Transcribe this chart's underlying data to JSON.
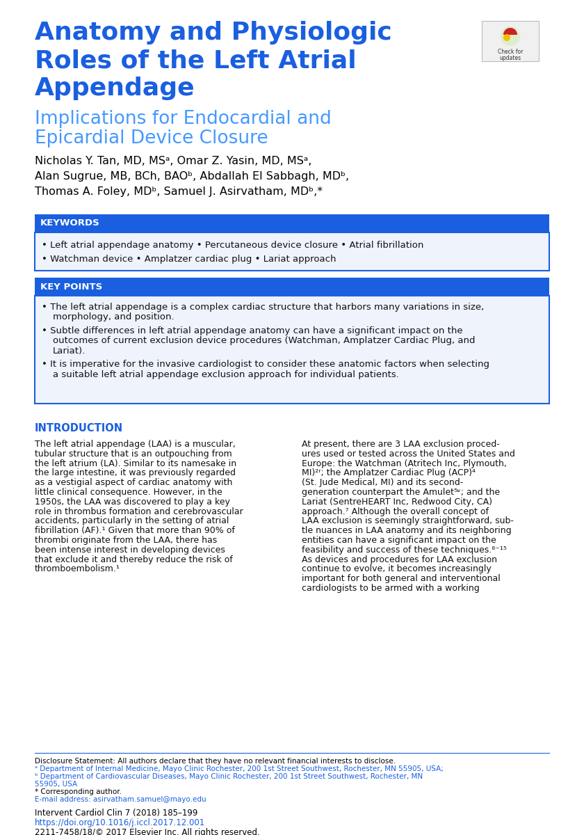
{
  "title_line1": "Anatomy and Physiologic",
  "title_line2": "Roles of the Left Atrial",
  "title_line3": "Appendage",
  "subtitle_line1": "Implications for Endocardial and",
  "subtitle_line2": "Epicardial Device Closure",
  "title_color": "#1a5fe0",
  "subtitle_color": "#4499ff",
  "authors_line1": "Nicholas Y. Tan, MD, MSᵃ, Omar Z. Yasin, MD, MSᵃ,",
  "authors_line2": "Alan Sugrue, MB, BCh, BAOᵇ, Abdallah El Sabbagh, MDᵇ,",
  "authors_line3": "Thomas A. Foley, MDᵇ, Samuel J. Asirvatham, MDᵇ,*",
  "keywords_header": "KEYWORDS",
  "keywords_line1": "• Left atrial appendage anatomy • Percutaneous device closure • Atrial fibrillation",
  "keywords_line2": "• Watchman device • Amplatzer cardiac plug • Lariat approach",
  "keypoints_header": "KEY POINTS",
  "keypoints": [
    "The left atrial appendage is a complex cardiac structure that harbors many variations in size,\nmorphology, and position.",
    "Subtle differences in left atrial appendage anatomy can have a significant impact on the\noutcomes of current exclusion device procedures (Watchman, Amplatzer Cardiac Plug, and\nLariat).",
    "It is imperative for the invasive cardiologist to consider these anatomic factors when selecting\na suitable left atrial appendage exclusion approach for individual patients."
  ],
  "section_header": "INTRODUCTION",
  "section_header_color": "#1a5fe0",
  "left_col_text": [
    "The left atrial appendage (LAA) is a muscular,",
    "tubular structure that is an outpouching from",
    "the left atrium (LA). Similar to its namesake in",
    "the large intestine, it was previously regarded",
    "as a vestigial aspect of cardiac anatomy with",
    "little clinical consequence. However, in the",
    "1950s, the LAA was discovered to play a key",
    "role in thrombus formation and cerebrovascular",
    "accidents, particularly in the setting of atrial",
    "fibrillation (AF).¹ Given that more than 90% of",
    "thrombi originate from the LAA, there has",
    "been intense interest in developing devices",
    "that exclude it and thereby reduce the risk of",
    "thromboembolism.¹"
  ],
  "right_col_text": [
    "At present, there are 3 LAA exclusion proced-",
    "ures used or tested across the United States and",
    "Europe: the Watchman (Atritech Inc, Plymouth,",
    "MI)²ʳ; the Amplatzer Cardiac Plug (ACP)⁴",
    "(St. Jude Medical, MI) and its second-",
    "generation counterpart the Amulet⁵ʶ; and the",
    "Lariat (SentreHEART Inc, Redwood City, CA)",
    "approach.⁷ Although the overall concept of",
    "LAA exclusion is seemingly straightforward, sub-",
    "tle nuances in LAA anatomy and its neighboring",
    "entities can have a significant impact on the",
    "feasibility and success of these techniques.⁸⁻¹⁵",
    "As devices and procedures for LAA exclusion",
    "continue to evolve, it becomes increasingly",
    "important for both general and interventional",
    "cardiologists to be armed with a working"
  ],
  "footer_disclosure": "Disclosure Statement: All authors declare that they have no relevant financial interests to disclose.",
  "footer_a": "ᵃ Department of Internal Medicine, Mayo Clinic Rochester, 200 1st Street Southwest, Rochester, MN 55905, USA;",
  "footer_b1": "ᵇ Department of Cardiovascular Diseases, Mayo Clinic Rochester, 200 1st Street Southwest, Rochester, MN",
  "footer_b2": "55905, USA",
  "footer_corr": "* Corresponding author.",
  "footer_email": "E-mail address: asirvatham.samuel@mayo.edu",
  "footer_journal": "Intervent Cardiol Clin 7 (2018) 185–199",
  "footer_doi": "https://doi.org/10.1016/j.iccl.2017.12.001",
  "footer_copy": "2211-7458/18/© 2017 Elsevier Inc. All rights reserved.",
  "blue_header_bg": "#1a5fe0",
  "box_border_color": "#1a5fe0",
  "box_bg_color": "#eef3fc",
  "bg_color": "#ffffff",
  "text_color": "#000000",
  "footer_blue_color": "#1a5fe0",
  "footer_black_color": "#000000"
}
